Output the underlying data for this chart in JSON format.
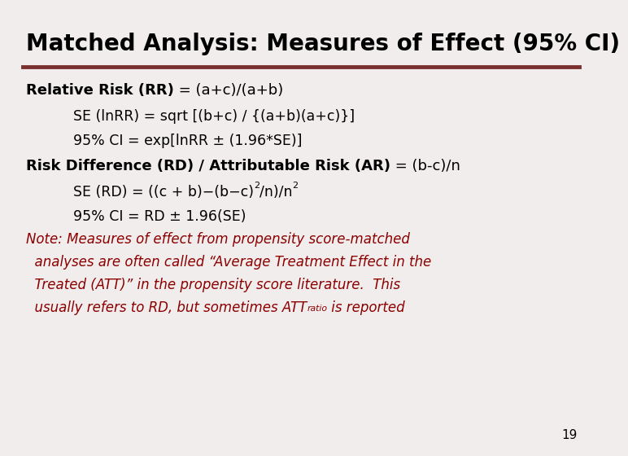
{
  "title": "Matched Analysis: Measures of Effect (95% CI)",
  "title_fontsize": 20,
  "bg_color": "#f2eded",
  "line_color": "#7b3030",
  "text_color": "#000000",
  "note_color": "#8b0000",
  "slide_number": "19",
  "main_fontsize": 13,
  "indent_fontsize": 12.5,
  "note_fontsize": 12
}
